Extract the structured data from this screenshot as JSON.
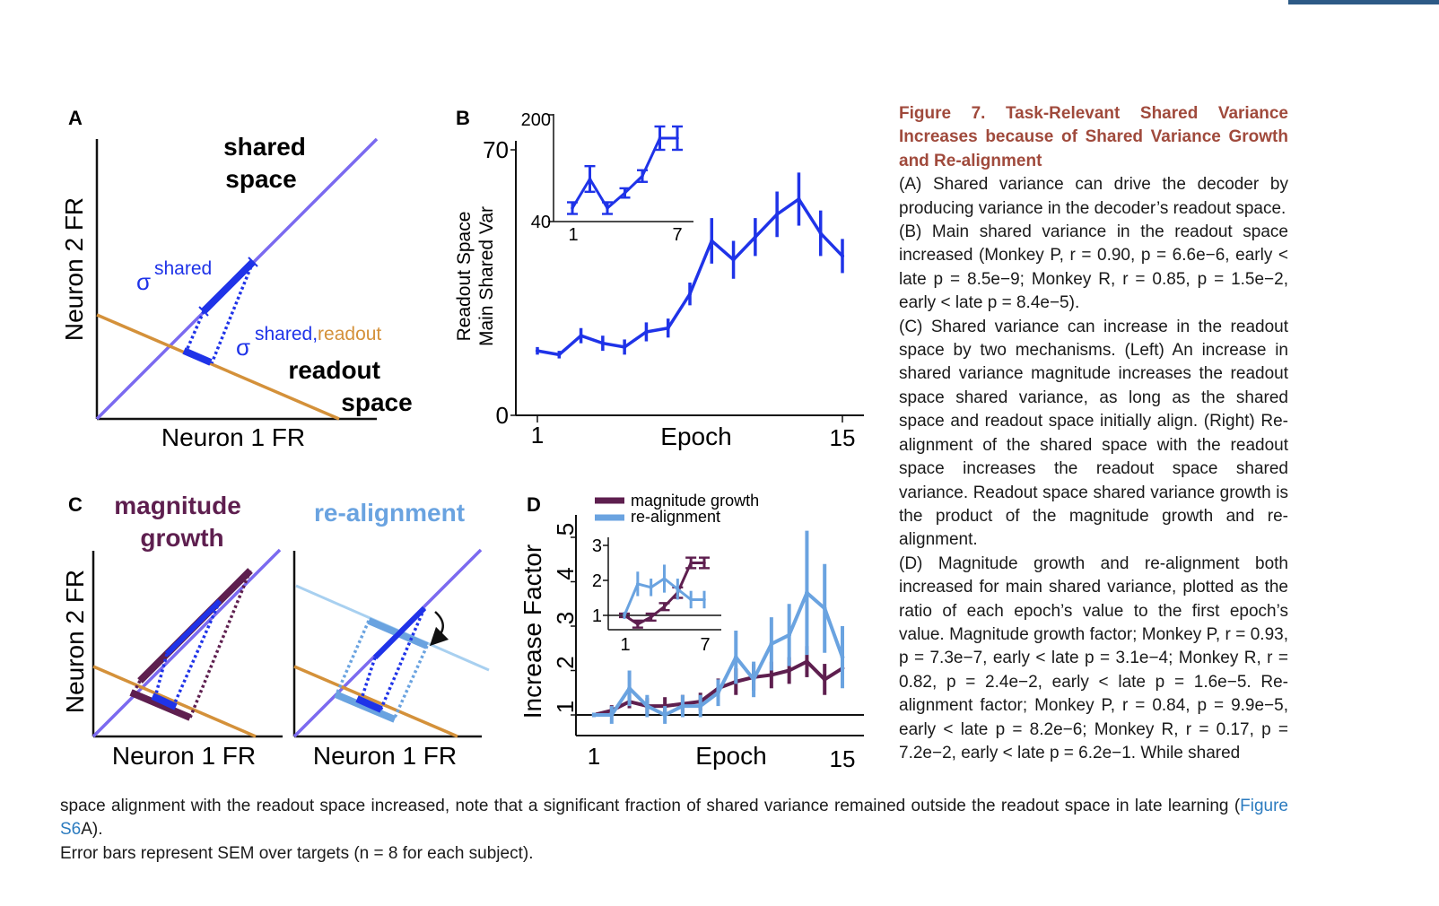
{
  "colors": {
    "header_accent": "#2d5a86",
    "caption_title": "#a04a3c",
    "link": "#2b7bbf",
    "shared_space_line": "#7b6af0",
    "readout_line": "#d4913a",
    "blue": "#1f33e8",
    "magnitude": "#5e1f4f",
    "realignment": "#6aa3e0",
    "realignment_light": "#a8d0f0"
  },
  "panels": {
    "A": {
      "letter": "A",
      "ylabel": "Neuron 2 FR",
      "xlabel": "Neuron 1 FR",
      "shared_line1": "shared",
      "shared_line2": "space",
      "readout_line1": "readout",
      "readout_line2": "space",
      "sigma": "σ",
      "sigma_shared_sub": "shared",
      "sigma_readout_sub1": "shared,",
      "sigma_readout_sub2": "readout"
    },
    "B": {
      "letter": "B",
      "ylabel1": "Readout Space",
      "ylabel2": "Main Shared Var",
      "xlabel": "Epoch"
    },
    "C": {
      "letter": "C",
      "left_title1": "magnitude",
      "left_title2": "growth",
      "right_title": "re-alignment",
      "ylabel": "Neuron 2 FR",
      "xlabel_left": "Neuron 1 FR",
      "xlabel_right": "Neuron 1 FR"
    },
    "D": {
      "letter": "D",
      "ylabel": "Increase Factor",
      "xlabel": "Epoch",
      "legend": [
        "magnitude growth",
        "re-alignment"
      ]
    }
  },
  "chart_data": [
    {
      "panel": "B",
      "type": "line",
      "xlabel": "Epoch",
      "ylabel": "Readout Space Main Shared Var",
      "xticks": [
        "1",
        "15"
      ],
      "yticks": [
        "0",
        "70"
      ],
      "ylim": [
        0,
        70
      ],
      "x": [
        1,
        2,
        3,
        4,
        5,
        6,
        7,
        8,
        9,
        10,
        11,
        12,
        13,
        14,
        15
      ],
      "series": [
        {
          "values": [
            17,
            16,
            21,
            19,
            18,
            22,
            23,
            32,
            46,
            41,
            47,
            53,
            57,
            48,
            42
          ],
          "error": [
            1,
            1,
            2,
            2,
            2,
            2.5,
            2.5,
            3,
            6,
            5,
            5,
            6,
            7,
            6,
            4.5
          ]
        }
      ],
      "inset": {
        "xticks": [
          "1",
          "7"
        ],
        "yticks": [
          "40",
          "200"
        ],
        "x": [
          1,
          2,
          3,
          4,
          5,
          6,
          7
        ],
        "values": [
          40,
          90,
          40,
          66,
          95,
          160,
          160
        ],
        "error": [
          10,
          22,
          10,
          8,
          10,
          20,
          20
        ]
      }
    },
    {
      "panel": "D",
      "type": "line",
      "xlabel": "Epoch",
      "ylabel": "Increase Factor",
      "xticks": [
        "1",
        "15"
      ],
      "yticks": [
        "1",
        "2",
        "3",
        "4",
        "5"
      ],
      "ylim": [
        0.6,
        5.4
      ],
      "x": [
        1,
        2,
        3,
        4,
        5,
        6,
        7,
        8,
        9,
        10,
        11,
        12,
        13,
        14,
        15
      ],
      "series": [
        {
          "name": "magnitude growth",
          "values": [
            1.0,
            1.1,
            1.3,
            1.2,
            1.2,
            1.25,
            1.3,
            1.6,
            1.75,
            1.85,
            1.9,
            2.0,
            2.2,
            1.8,
            2.05
          ],
          "error": [
            0.05,
            0.12,
            0.15,
            0.18,
            0.2,
            0.2,
            0.2,
            0.22,
            0.3,
            0.3,
            0.3,
            0.3,
            0.35,
            0.35,
            0.3
          ]
        },
        {
          "name": "re-alignment",
          "values": [
            1.0,
            1.0,
            1.6,
            1.2,
            1.0,
            1.2,
            1.2,
            1.5,
            2.3,
            1.8,
            2.6,
            2.8,
            3.75,
            3.4,
            2.3
          ],
          "error": [
            0.05,
            0.2,
            0.4,
            0.25,
            0.2,
            0.25,
            0.25,
            0.3,
            0.6,
            0.4,
            0.6,
            0.7,
            1.4,
            1.0,
            0.7
          ]
        }
      ],
      "inset": {
        "xticks": [
          "1",
          "7"
        ],
        "yticks": [
          "1",
          "2",
          "3"
        ],
        "x": [
          1,
          2,
          3,
          4,
          5,
          6,
          7
        ],
        "series": [
          {
            "name": "magnitude growth",
            "values": [
              1.0,
              0.75,
              0.95,
              1.25,
              1.65,
              2.5,
              2.5
            ],
            "error": [
              0.05,
              0.1,
              0.1,
              0.1,
              0.15,
              0.15,
              0.15
            ]
          },
          {
            "name": "re-alignment",
            "values": [
              1.0,
              1.9,
              1.8,
              2.05,
              1.75,
              1.45,
              1.45
            ],
            "error": [
              0.1,
              0.35,
              0.25,
              0.4,
              0.3,
              0.25,
              0.25
            ]
          }
        ]
      }
    }
  ],
  "caption": {
    "title": "Figure 7. Task-Relevant Shared Variance Increases because of Shared Variance Growth and Re-alignment",
    "paragraphs": [
      "(A) Shared variance can drive the decoder by producing variance in the decoder’s readout space.",
      "(B) Main shared variance in the readout space increased (Monkey P, r = 0.90, p = 6.6e−6, early < late p = 8.5e−9; Monkey R, r = 0.85, p = 1.5e−2, early < late p = 8.4e−5).",
      "(C) Shared variance can increase in the readout space by two mechanisms. (Left) An increase in shared variance magnitude increases the readout space shared variance, as long as the shared space and readout space initially align. (Right) Re-alignment of the shared space with the readout space increases the readout space shared variance. Readout space shared variance growth is the product of the magnitude growth and re-alignment.",
      "(D) Magnitude growth and re-alignment both increased for main shared variance, plotted as the ratio of each epoch’s value to the first epoch’s value. Magnitude growth factor; Monkey P, r = 0.93, p = 7.3e−7, early < late p = 3.1e−4; Monkey R, r = 0.82, p = 2.4e−2, early < late p = 1.6e−5. Re-alignment factor; Monkey P, r = 0.84, p = 9.9e−5, early < late p = 8.2e−6; Monkey R, r = 0.17, p = 7.2e−2, early < late p = 6.2e−1. While shared"
    ]
  },
  "body": {
    "line1": "space alignment with the readout space increased, note that a significant fraction of shared variance remained outside the readout space in late learning",
    "open_paren": "(",
    "link_text": "Figure S6",
    "after_link": "A).",
    "line2": "Error bars represent SEM over targets (n = 8 for each subject)."
  }
}
